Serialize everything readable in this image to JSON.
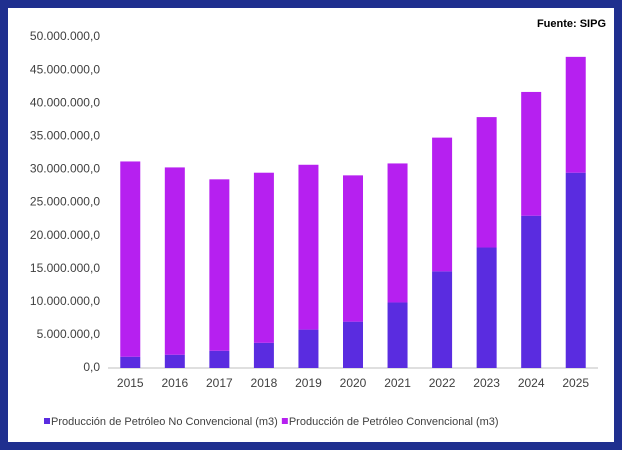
{
  "chart_data": {
    "type": "stacked_bar",
    "annotation": "Fuente: SIPG",
    "categories": [
      "2015",
      "2016",
      "2017",
      "2018",
      "2019",
      "2020",
      "2021",
      "2022",
      "2023",
      "2024",
      "2025"
    ],
    "series": [
      {
        "name": "Producción de Petróleo No Convencional (m3)",
        "color": "#5a2ce0",
        "values": [
          1700000,
          2000000,
          2600000,
          3800000,
          5800000,
          7000000,
          9900000,
          14600000,
          18200000,
          23000000,
          29500000
        ]
      },
      {
        "name": "Producción de Petróleo Convencional (m3)",
        "color": "#b620f0",
        "values": [
          29500000,
          28300000,
          25900000,
          25700000,
          24900000,
          22100000,
          21000000,
          20200000,
          19700000,
          18700000,
          17500000
        ]
      }
    ],
    "ylim": [
      0,
      50000000
    ],
    "yticks": [
      {
        "value": 0,
        "label": "0,0"
      },
      {
        "value": 5000000,
        "label": "5.000.000,0"
      },
      {
        "value": 10000000,
        "label": "10.000.000,0"
      },
      {
        "value": 15000000,
        "label": "15.000.000,0"
      },
      {
        "value": 20000000,
        "label": "20.000.000,0"
      },
      {
        "value": 25000000,
        "label": "25.000.000,0"
      },
      {
        "value": 30000000,
        "label": "30.000.000,0"
      },
      {
        "value": 35000000,
        "label": "35.000.000,0"
      },
      {
        "value": 40000000,
        "label": "40.000.000,0"
      },
      {
        "value": 45000000,
        "label": "45.000.000,0"
      },
      {
        "value": 50000000,
        "label": "50.000.000,0"
      }
    ],
    "grid": false,
    "legend": "bottom"
  }
}
